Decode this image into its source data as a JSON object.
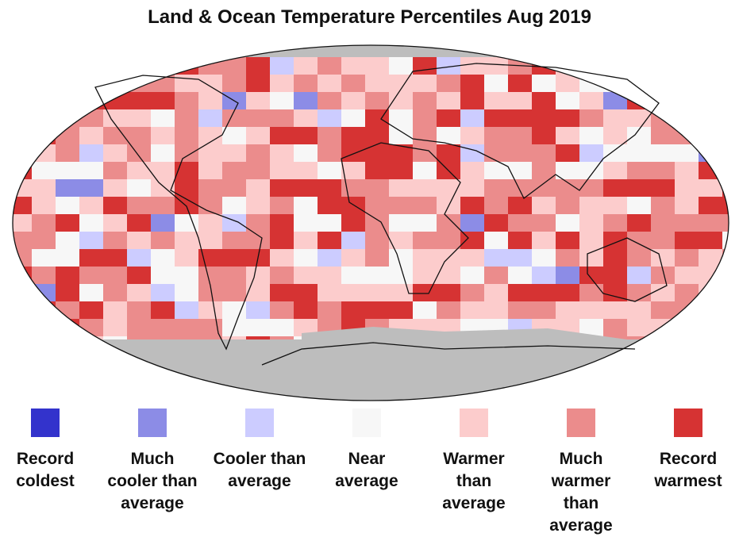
{
  "title": "Land & Ocean Temperature Percentiles Aug 2019",
  "legend": [
    {
      "label": "Record coldest",
      "color": "#3333cc"
    },
    {
      "label": "Much cooler than average",
      "color": "#8c8ce6"
    },
    {
      "label": "Cooler than average",
      "color": "#ccccff"
    },
    {
      "label": "Near average",
      "color": "#f7f7f7"
    },
    {
      "label": "Warmer than average",
      "color": "#fccccc"
    },
    {
      "label": "Much warmer than average",
      "color": "#eb8c8c"
    },
    {
      "label": "Record warmest",
      "color": "#d63333"
    }
  ]
}
